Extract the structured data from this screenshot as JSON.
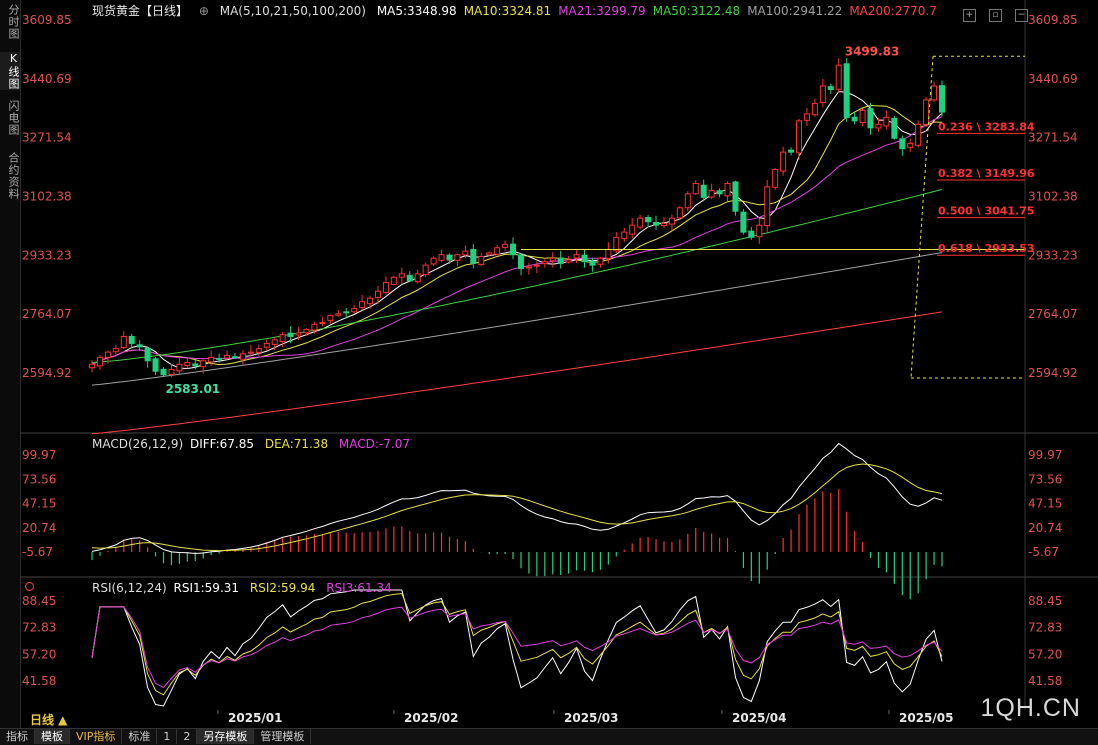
{
  "sidebar": {
    "tabs": [
      {
        "label": "分时图",
        "active": false
      },
      {
        "label": "K线图",
        "active": true
      },
      {
        "label": "闪电图",
        "active": false
      },
      {
        "label": "合约资料",
        "active": false
      }
    ]
  },
  "header": {
    "instrument": "现货黄金【日线】",
    "ma_params": "MA(5,10,21,50,100,200)",
    "ma_values": [
      {
        "label": "MA5:3348.98",
        "color": "#ffffff"
      },
      {
        "label": "MA10:3324.81",
        "color": "#e8e04a"
      },
      {
        "label": "MA21:3299.79",
        "color": "#e040e0"
      },
      {
        "label": "MA50:3122.48",
        "color": "#40d040"
      },
      {
        "label": "MA100:2941.22",
        "color": "#a0a0a0"
      },
      {
        "label": "MA200:2770.7",
        "color": "#ff4040"
      }
    ]
  },
  "macd": {
    "params": "MACD(26,12,9)",
    "diff": "DIFF:67.85",
    "dea": "DEA:71.38",
    "macd": "MACD:-7.07"
  },
  "rsi": {
    "params": "RSI(6,12,24)",
    "rsi1": "RSI1:59.31",
    "rsi2": "RSI2:59.94",
    "rsi3": "RSI3:61.34"
  },
  "bottom": {
    "period": "日线 ▲",
    "tabs": [
      {
        "label": "指标",
        "active": false,
        "vip": false
      },
      {
        "label": "模板",
        "active": true,
        "vip": false
      },
      {
        "label": "VIP指标",
        "active": false,
        "vip": true
      },
      {
        "label": "标准",
        "active": false,
        "vip": false
      },
      {
        "label": "1",
        "active": false,
        "vip": false
      },
      {
        "label": "2",
        "active": false,
        "vip": false
      },
      {
        "label": "另存模板",
        "active": true,
        "vip": false
      },
      {
        "label": "管理模板",
        "active": false,
        "vip": false
      }
    ]
  },
  "watermark": "1QH.CN",
  "chart_data": [
    {
      "type": "candlestick",
      "title": "现货黄金【日线】",
      "x_labels": [
        "2025/01",
        "2025/02",
        "2025/03",
        "2025/04",
        "2025/05"
      ],
      "y_ticks": [
        "3609.85",
        "3440.69",
        "3271.54",
        "3102.38",
        "2933.23",
        "2764.07",
        "2594.92"
      ],
      "ylim": [
        2594.92,
        3609.85
      ],
      "annotations": {
        "high": "3499.83",
        "low": "2583.01"
      },
      "fibonacci": [
        {
          "label": "0.236 \\ 3283.84",
          "value": 3283.84
        },
        {
          "label": "0.382 \\ 3149.96",
          "value": 3149.96
        },
        {
          "label": "0.500 \\ 3041.75",
          "value": 3041.75
        },
        {
          "label": "0.618 \\ 2933.53",
          "value": 2933.53
        }
      ],
      "horizontal_line": 2950,
      "close_series": [
        2620,
        2640,
        2655,
        2665,
        2700,
        2680,
        2670,
        2630,
        2600,
        2590,
        2605,
        2620,
        2625,
        2615,
        2630,
        2640,
        2635,
        2645,
        2640,
        2650,
        2655,
        2665,
        2680,
        2690,
        2705,
        2700,
        2710,
        2720,
        2735,
        2740,
        2760,
        2765,
        2770,
        2780,
        2800,
        2810,
        2830,
        2855,
        2870,
        2880,
        2860,
        2880,
        2905,
        2925,
        2935,
        2920,
        2935,
        2945,
        2910,
        2930,
        2940,
        2955,
        2965,
        2935,
        2895,
        2900,
        2905,
        2915,
        2925,
        2910,
        2920,
        2935,
        2915,
        2905,
        2925,
        2950,
        2985,
        3000,
        3020,
        3040,
        3030,
        3020,
        3025,
        3040,
        3070,
        3110,
        3140,
        3100,
        3120,
        3110,
        3140,
        3060,
        3000,
        2985,
        3020,
        3130,
        3180,
        3230,
        3230,
        3320,
        3340,
        3370,
        3420,
        3410,
        3480,
        3330,
        3320,
        3350,
        3300,
        3310,
        3330,
        3270,
        3240,
        3255,
        3310,
        3380,
        3420,
        3345
      ],
      "ma_series": [
        {
          "name": "MA5",
          "color": "#ffffff"
        },
        {
          "name": "MA10",
          "color": "#e8e04a"
        },
        {
          "name": "MA21",
          "color": "#e040e0"
        },
        {
          "name": "MA50",
          "color": "#40d040"
        },
        {
          "name": "MA100",
          "color": "#a0a0a0"
        },
        {
          "name": "MA200",
          "color": "#ff4040"
        }
      ]
    },
    {
      "type": "line",
      "title": "MACD(26,12,9)",
      "y_ticks": [
        "99.97",
        "73.56",
        "47.15",
        "20.74",
        "-5.67"
      ],
      "ylim": [
        -5.67,
        99.97
      ]
    },
    {
      "type": "line",
      "title": "RSI(6,12,24)",
      "y_ticks": [
        "88.45",
        "72.83",
        "57.20",
        "41.58"
      ],
      "ylim": [
        41.58,
        88.45
      ]
    }
  ]
}
